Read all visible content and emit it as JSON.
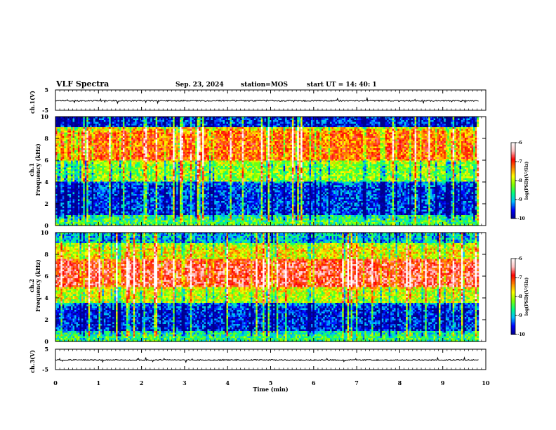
{
  "header": {
    "title": "VLF Spectra",
    "date": "Sep. 23, 2024",
    "station": "station=MOS",
    "start_time": "start  UT =   14: 40: 1"
  },
  "chart_data": [
    {
      "type": "line",
      "name": "ch1-waveform",
      "ylabel": "ch.1(V)",
      "ylim": [
        -5,
        5
      ],
      "y_ticks": [
        "5",
        "-5"
      ],
      "approx_level": -0.3
    },
    {
      "type": "heatmap",
      "name": "ch1-spectrogram",
      "ylabel": "ch.1\nFrequency (kHz)",
      "ylim": [
        0,
        10
      ],
      "y_ticks": [
        "0",
        "2",
        "4",
        "6",
        "8",
        "10"
      ],
      "xlim": [
        0,
        10
      ],
      "x_units": "min",
      "intensity_bands": [
        {
          "from_khz": 0,
          "to_khz": 1,
          "level": -8.5
        },
        {
          "from_khz": 1,
          "to_khz": 4,
          "level": -9.5
        },
        {
          "from_khz": 4,
          "to_khz": 6,
          "level": -8.2
        },
        {
          "from_khz": 6,
          "to_khz": 9,
          "level": -7.2
        },
        {
          "from_khz": 9,
          "to_khz": 10,
          "level": -9.6
        }
      ],
      "colorbar": {
        "label": "log(PSD)(V²/Hz)",
        "min": -10,
        "max": -6,
        "ticks": [
          "-6",
          "-7",
          "-8",
          "-9",
          "-10"
        ]
      }
    },
    {
      "type": "heatmap",
      "name": "ch2-spectrogram",
      "ylabel": "ch.2\nFrequency (kHz)",
      "ylim": [
        0,
        10
      ],
      "y_ticks": [
        "0",
        "2",
        "4",
        "6",
        "8",
        "10"
      ],
      "xlim": [
        0,
        10
      ],
      "x_units": "min",
      "intensity_bands": [
        {
          "from_khz": 0,
          "to_khz": 1,
          "level": -8.6
        },
        {
          "from_khz": 1,
          "to_khz": 3.5,
          "level": -9.6
        },
        {
          "from_khz": 3.5,
          "to_khz": 5,
          "level": -8.0
        },
        {
          "from_khz": 5,
          "to_khz": 7.5,
          "level": -6.8
        },
        {
          "from_khz": 7.5,
          "to_khz": 9,
          "level": -7.8
        },
        {
          "from_khz": 9,
          "to_khz": 10,
          "level": -9.0
        }
      ],
      "colorbar": {
        "label": "log(PSD)(V²/Hz)",
        "min": -10,
        "max": -6,
        "ticks": [
          "-6",
          "-7",
          "-8",
          "-9",
          "-10"
        ]
      }
    },
    {
      "type": "line",
      "name": "ch3-waveform",
      "ylabel": "ch.3(V)",
      "ylim": [
        -5,
        5
      ],
      "y_ticks": [
        "5",
        "-5"
      ],
      "approx_level": -0.3
    }
  ],
  "x_axis": {
    "label": "Time  (min)",
    "range": [
      0,
      10
    ],
    "ticks": [
      "0",
      "1",
      "2",
      "3",
      "4",
      "5",
      "6",
      "7",
      "8",
      "9",
      "10"
    ]
  },
  "colors": {
    "colormap": [
      "#00008b",
      "#0000ff",
      "#00bfff",
      "#00ff80",
      "#80ff00",
      "#ffff00",
      "#ff8000",
      "#ff0000",
      "#ffc0c0",
      "#ffffff"
    ],
    "trace": "#000000"
  }
}
